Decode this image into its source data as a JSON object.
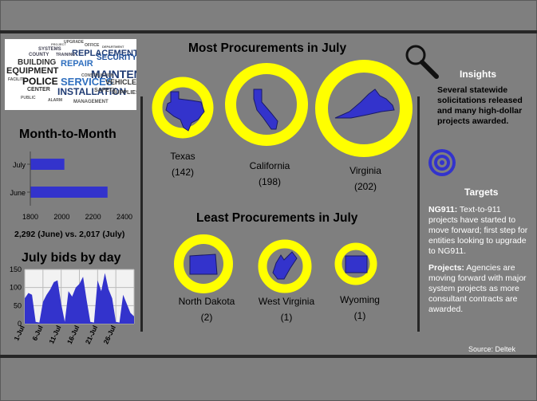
{
  "wordcloud": {
    "words": [
      "UPGRADE",
      "OFFICE",
      "DEPARTMENT",
      "SYSTEMS",
      "REPLACEMENT",
      "COUNTY",
      "TRAINING",
      "SECURITY",
      "BUILDING",
      "REPAIR",
      "EQUIPMENT",
      "MAINTENANCE",
      "POLICE",
      "SERVICES",
      "VEHICLE",
      "CENTER",
      "INSTALLATION",
      "SUPPLIES",
      "PROJECT",
      "FACILITY",
      "SAFETY",
      "ALARM",
      "MANAGEMENT",
      "PUBLIC",
      "CONSTRUCTION"
    ]
  },
  "month_to_month": {
    "title": "Month-to-Month",
    "comparison": "2,292 (June) vs. 2,017 (July)"
  },
  "daily": {
    "title": "July bids by day"
  },
  "most": {
    "title": "Most Procurements in July",
    "states": [
      {
        "name": "Texas",
        "count": "(142)"
      },
      {
        "name": "California",
        "count": "(198)"
      },
      {
        "name": "Virginia",
        "count": "(202)"
      }
    ]
  },
  "least": {
    "title": "Least Procurements in July",
    "states": [
      {
        "name": "North Dakota",
        "count": "(2)"
      },
      {
        "name": "West Virginia",
        "count": "(1)"
      },
      {
        "name": "Wyoming",
        "count": "(1)"
      }
    ]
  },
  "insights": {
    "title": "Insights",
    "text": "Several statewide solicitations released and many high-dollar projects awarded."
  },
  "targets": {
    "title": "Targets",
    "ng911_label": "NG911:",
    "ng911_text": " Text-to-911 projects have started to move forward; first step for entities looking to upgrade to NG911.",
    "projects_label": "Projects:",
    "projects_text": " Agencies are moving forward with major system projects as more consultant contracts are awarded."
  },
  "source": "Source: Deltek",
  "colors": {
    "background": "#7f7f7f",
    "ring": "#ffff00",
    "bar": "#3333cc",
    "state": "#3333cc",
    "divider": "#262626"
  },
  "icons": [
    "magnifier-icon",
    "target-icon"
  ],
  "chart_data": [
    {
      "type": "bar",
      "orientation": "horizontal",
      "categories": [
        "July",
        "June"
      ],
      "values": [
        2017,
        2292
      ],
      "xlim": [
        1800,
        2400
      ],
      "xticks": [
        "1800",
        "2000",
        "2200",
        "2400"
      ],
      "grid": false
    },
    {
      "type": "area",
      "x": [
        "1-Jul",
        "2-Jul",
        "3-Jul",
        "4-Jul",
        "5-Jul",
        "6-Jul",
        "7-Jul",
        "8-Jul",
        "9-Jul",
        "10-Jul",
        "11-Jul",
        "12-Jul",
        "13-Jul",
        "14-Jul",
        "15-Jul",
        "16-Jul",
        "17-Jul",
        "18-Jul",
        "19-Jul",
        "20-Jul",
        "21-Jul",
        "22-Jul",
        "23-Jul",
        "24-Jul",
        "25-Jul",
        "26-Jul",
        "27-Jul",
        "28-Jul",
        "29-Jul",
        "30-Jul",
        "31-Jul"
      ],
      "xticks": [
        "1-Jul",
        "6-Jul",
        "11-Jul",
        "16-Jul",
        "21-Jul",
        "26-Jul"
      ],
      "values": [
        70,
        85,
        80,
        5,
        3,
        60,
        80,
        95,
        115,
        120,
        55,
        5,
        90,
        75,
        100,
        110,
        130,
        65,
        5,
        3,
        120,
        90,
        140,
        95,
        70,
        5,
        3,
        80,
        55,
        30,
        20
      ],
      "ylim": [
        0,
        150
      ],
      "yticks": [
        "0",
        "50",
        "100",
        "150"
      ],
      "grid": true
    }
  ]
}
